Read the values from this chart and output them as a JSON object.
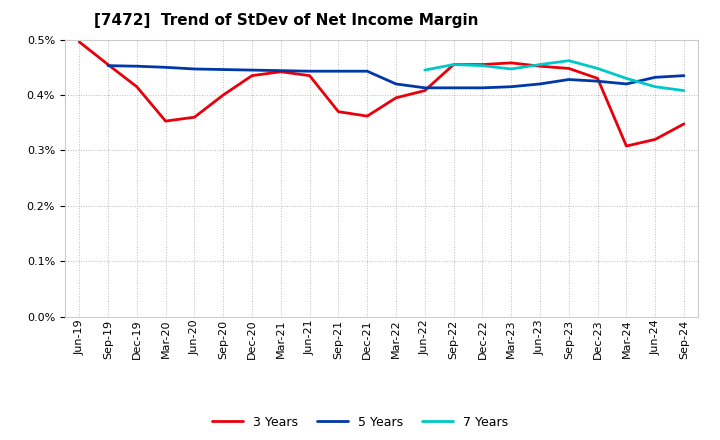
{
  "title": "[7472]  Trend of StDev of Net Income Margin",
  "x_labels": [
    "Jun-19",
    "Sep-19",
    "Dec-19",
    "Mar-20",
    "Jun-20",
    "Sep-20",
    "Dec-20",
    "Mar-21",
    "Jun-21",
    "Sep-21",
    "Dec-21",
    "Mar-22",
    "Jun-22",
    "Sep-22",
    "Dec-22",
    "Mar-23",
    "Jun-23",
    "Sep-23",
    "Dec-23",
    "Mar-24",
    "Jun-24",
    "Sep-24"
  ],
  "series_3yr": [
    0.496,
    0.455,
    0.415,
    0.353,
    0.36,
    0.4,
    0.435,
    0.442,
    0.435,
    0.37,
    0.362,
    0.395,
    0.408,
    0.455,
    0.455,
    0.458,
    0.452,
    0.448,
    0.43,
    0.308,
    0.32,
    0.348
  ],
  "series_5yr": [
    null,
    0.453,
    0.452,
    0.45,
    0.447,
    0.446,
    0.445,
    0.444,
    0.443,
    0.443,
    0.443,
    0.42,
    0.413,
    0.413,
    0.413,
    0.415,
    0.42,
    0.428,
    0.425,
    0.42,
    0.432,
    0.435
  ],
  "series_7yr": [
    null,
    null,
    null,
    null,
    null,
    null,
    null,
    null,
    null,
    null,
    null,
    null,
    0.445,
    0.455,
    0.453,
    0.447,
    0.455,
    0.462,
    0.448,
    0.43,
    0.415,
    0.408
  ],
  "series_10yr": [
    null,
    null,
    null,
    null,
    null,
    null,
    null,
    null,
    null,
    null,
    null,
    null,
    null,
    null,
    null,
    null,
    null,
    null,
    null,
    null,
    null,
    null
  ],
  "colors": {
    "3yr": "#e8000b",
    "5yr": "#0038a8",
    "7yr": "#00c8c8",
    "10yr": "#008000"
  },
  "ylim_min": 0.0,
  "ylim_max": 0.5,
  "yticks": [
    0.0,
    0.1,
    0.2,
    0.3,
    0.4,
    0.5
  ],
  "background_color": "#ffffff",
  "grid_color": "#aaaaaa",
  "title_fontsize": 11,
  "tick_fontsize": 8,
  "legend_fontsize": 9,
  "line_width": 2.0
}
